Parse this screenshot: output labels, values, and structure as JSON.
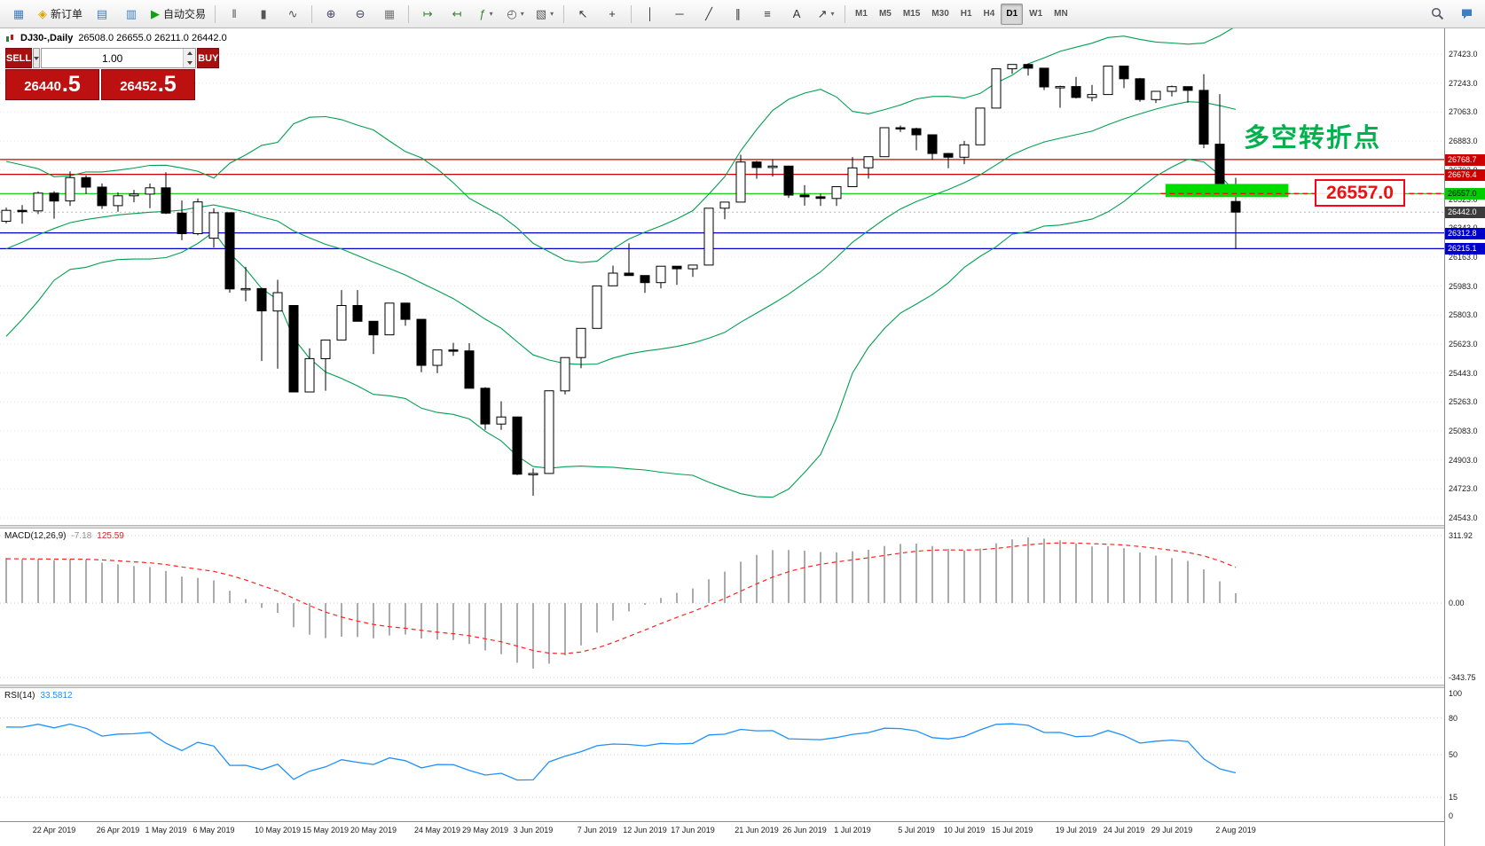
{
  "toolbar": {
    "items": [
      {
        "name": "new-chart-button",
        "glyph": "▦",
        "color": "#3b7fc4"
      },
      {
        "name": "new-order-button",
        "glyph": "◈",
        "color": "#dfa400",
        "label": "新订单"
      },
      {
        "name": "chart-profiles-button",
        "glyph": "▤",
        "color": "#3b7fc4"
      },
      {
        "name": "market-watch-button",
        "glyph": "▥",
        "color": "#3b7fc4"
      },
      {
        "name": "auto-trading-button",
        "glyph": "▶",
        "color": "#12a112",
        "label": "自动交易"
      },
      {
        "type": "sep"
      },
      {
        "name": "bar-chart-button",
        "glyph": "‖",
        "color": "#555"
      },
      {
        "name": "candlestick-chart-button",
        "glyph": "▮",
        "color": "#555"
      },
      {
        "name": "line-chart-button",
        "glyph": "∿",
        "color": "#555"
      },
      {
        "type": "sep"
      },
      {
        "name": "zoom-in-button",
        "glyph": "⊕",
        "color": "#446"
      },
      {
        "name": "zoom-out-button",
        "glyph": "⊖",
        "color": "#446"
      },
      {
        "name": "tile-windows-button",
        "glyph": "▦",
        "color": "#777"
      },
      {
        "type": "sep"
      },
      {
        "name": "auto-scroll-button",
        "glyph": "↦",
        "color": "#2c8b2c"
      },
      {
        "name": "chart-shift-button",
        "glyph": "↤",
        "color": "#2c8b2c"
      },
      {
        "name": "indicators-button",
        "glyph": "ƒ",
        "color": "#2c8b2c",
        "dropdown": true
      },
      {
        "name": "periods-button",
        "glyph": "◴",
        "color": "#555",
        "dropdown": true
      },
      {
        "name": "templates-button",
        "glyph": "▧",
        "color": "#555",
        "dropdown": true
      },
      {
        "type": "sep"
      },
      {
        "name": "cursor-button",
        "glyph": "↖",
        "color": "#333"
      },
      {
        "name": "crosshair-button",
        "glyph": "+",
        "color": "#333"
      },
      {
        "type": "sep"
      },
      {
        "name": "vertical-line-button",
        "glyph": "│",
        "color": "#333"
      },
      {
        "name": "horizontal-line-button",
        "glyph": "─",
        "color": "#333"
      },
      {
        "name": "trendline-button",
        "glyph": "╱",
        "color": "#333"
      },
      {
        "name": "channel-button",
        "glyph": "∥",
        "color": "#333"
      },
      {
        "name": "fibonacci-button",
        "glyph": "≡",
        "color": "#333"
      },
      {
        "name": "text-button",
        "glyph": "A",
        "color": "#333"
      },
      {
        "name": "arrow-objects-button",
        "glyph": "↗",
        "color": "#333",
        "dropdown": true
      },
      {
        "type": "sep"
      },
      {
        "type": "timeframes"
      },
      {
        "type": "spacer"
      },
      {
        "name": "search-button",
        "svg": "search"
      },
      {
        "name": "community-button",
        "svg": "chat"
      }
    ],
    "timeframes": {
      "items": [
        "M1",
        "M5",
        "M15",
        "M30",
        "H1",
        "H4",
        "D1",
        "W1",
        "MN"
      ],
      "active": "D1"
    }
  },
  "chart": {
    "symbol_period": "DJ30-,Daily",
    "ohlc_text": "26508.0 26655.0 26211.0 26442.0",
    "trade_panel": {
      "sell_label": "SELL",
      "buy_label": "BUY",
      "volume": "1.00",
      "sell_price": "26440",
      "sell_frac": ".5",
      "buy_price": "26452",
      "buy_frac": ".5"
    },
    "annotation_text": "多空转折点",
    "callout_text": "26557.0",
    "current_price": 26442.0,
    "current_price_badge_color": "#3c3c3c",
    "levels": [
      {
        "price": 26768.7,
        "color": "#cc0000",
        "text_color": "#ffffff"
      },
      {
        "price": 26676.4,
        "color": "#cc0000",
        "text_color": "#ffffff"
      },
      {
        "price": 26557.0,
        "color": "#00cc00",
        "text_color": "#000000"
      },
      {
        "price": 26312.8,
        "color": "#0000cc",
        "text_color": "#ffffff"
      },
      {
        "price": 26215.1,
        "color": "#0000cc",
        "text_color": "#ffffff"
      }
    ],
    "highlight_rect": {
      "i1": 72.6,
      "i2": 80.3,
      "price_top": 26617,
      "price_bottom": 26535,
      "color": "#00dc00"
    },
    "callout_line": {
      "i1": 72.3,
      "price": 26557.0,
      "color": "#ff0016"
    }
  },
  "chart_data": {
    "type": "candlestick",
    "title": "DJ30-,Daily",
    "price_axis": {
      "p_max": 27583,
      "p_min": 24499,
      "gridlines": [
        27423,
        27243,
        27063,
        26883,
        26703,
        26523,
        26343,
        26163,
        25983,
        25803,
        25623,
        25443,
        25263,
        25083,
        24903,
        24723,
        24543
      ]
    },
    "open": [
      26385,
      26453,
      26450,
      26560,
      26511,
      26656,
      26597,
      26482,
      26543,
      26554,
      26593,
      26436,
      26308,
      26280,
      26438,
      25965,
      25967,
      25828,
      25862,
      25325,
      25532,
      25648,
      25862,
      25764,
      25680,
      25877,
      25776,
      25490,
      25586,
      25580,
      25348,
      25126,
      25170,
      24815,
      24819,
      25332,
      25539,
      25720,
      25984,
      26063,
      26048,
      26004,
      26106,
      26090,
      26113,
      26466,
      26504,
      26753,
      26719,
      26728,
      26548,
      26537,
      26527,
      26600,
      26717,
      26786,
      26966,
      26960,
      26922,
      26806,
      26783,
      26860,
      27088,
      27332,
      27359,
      27336,
      27220,
      27222,
      27154,
      27172,
      27349,
      27270,
      27141,
      27192,
      27221,
      27198,
      26864,
      26508
    ],
    "high": [
      26470,
      26486,
      26570,
      26572,
      26695,
      26670,
      26620,
      26564,
      26580,
      26619,
      26689,
      26514,
      26527,
      26465,
      26439,
      26102,
      25972,
      26022,
      25862,
      25596,
      25648,
      25958,
      25958,
      25764,
      25877,
      25877,
      25776,
      25586,
      25630,
      25628,
      25355,
      25267,
      25170,
      24850,
      25332,
      25539,
      25720,
      25984,
      26110,
      26248,
      26048,
      26106,
      26106,
      26113,
      26466,
      26504,
      26798,
      26760,
      26768,
      26730,
      26610,
      26557,
      26600,
      26784,
      26786,
      26966,
      26980,
      26966,
      26922,
      26810,
      26884,
      27088,
      27332,
      27359,
      27365,
      27336,
      27227,
      27282,
      27232,
      27349,
      27349,
      27275,
      27192,
      27228,
      27221,
      27299,
      27175,
      26655
    ],
    "low": [
      26372,
      26370,
      26430,
      26401,
      26480,
      26555,
      26462,
      26444,
      26503,
      26466,
      26430,
      26268,
      26298,
      26222,
      25942,
      25888,
      25517,
      25470,
      25324,
      25325,
      25333,
      25648,
      25764,
      25560,
      25680,
      25736,
      25448,
      25442,
      25550,
      25348,
      25090,
      25090,
      24809,
      24680,
      24819,
      25310,
      25472,
      25720,
      25984,
      26048,
      25940,
      25968,
      25990,
      26040,
      26113,
      26398,
      26504,
      26649,
      26663,
      26530,
      26482,
      26480,
      26480,
      26600,
      26650,
      26786,
      26940,
      26826,
      26766,
      26714,
      26740,
      26860,
      27088,
      27300,
      27290,
      27200,
      27090,
      27148,
      27130,
      27172,
      27212,
      27127,
      27120,
      27160,
      27121,
      26839,
      26583,
      26211
    ],
    "close": [
      26453,
      26450,
      26560,
      26511,
      26656,
      26597,
      26482,
      26543,
      26554,
      26593,
      26436,
      26308,
      26505,
      26438,
      25965,
      25967,
      25828,
      25942,
      25325,
      25532,
      25648,
      25862,
      25764,
      25680,
      25877,
      25776,
      25490,
      25586,
      25580,
      25348,
      25126,
      25170,
      24815,
      24819,
      25332,
      25539,
      25720,
      25984,
      26063,
      26048,
      26004,
      26106,
      26090,
      26113,
      26466,
      26504,
      26753,
      26719,
      26728,
      26548,
      26537,
      26527,
      26600,
      26717,
      26786,
      26966,
      26960,
      26922,
      26806,
      26783,
      26860,
      27088,
      27332,
      27359,
      27336,
      27220,
      27222,
      27154,
      27172,
      27349,
      27270,
      27141,
      27192,
      27221,
      27198,
      26864,
      26583,
      26442
    ],
    "x_axis_labels": [
      {
        "i": 3,
        "t": "22 Apr 2019"
      },
      {
        "i": 7,
        "t": "26 Apr 2019"
      },
      {
        "i": 10,
        "t": "1 May 2019"
      },
      {
        "i": 13,
        "t": "6 May 2019"
      },
      {
        "i": 17,
        "t": "10 May 2019"
      },
      {
        "i": 20,
        "t": "15 May 2019"
      },
      {
        "i": 23,
        "t": "20 May 2019"
      },
      {
        "i": 27,
        "t": "24 May 2019"
      },
      {
        "i": 30,
        "t": "29 May 2019"
      },
      {
        "i": 33,
        "t": "3 Jun 2019"
      },
      {
        "i": 37,
        "t": "7 Jun 2019"
      },
      {
        "i": 40,
        "t": "12 Jun 2019"
      },
      {
        "i": 43,
        "t": "17 Jun 2019"
      },
      {
        "i": 47,
        "t": "21 Jun 2019"
      },
      {
        "i": 50,
        "t": "26 Jun 2019"
      },
      {
        "i": 53,
        "t": "1 Jul 2019"
      },
      {
        "i": 57,
        "t": "5 Jul 2019"
      },
      {
        "i": 60,
        "t": "10 Jul 2019"
      },
      {
        "i": 63,
        "t": "15 Jul 2019"
      },
      {
        "i": 67,
        "t": "19 Jul 2019"
      },
      {
        "i": 70,
        "t": "24 Jul 2019"
      },
      {
        "i": 73,
        "t": "29 Jul 2019"
      },
      {
        "i": 77,
        "t": "2 Aug 2019"
      }
    ],
    "indicators": {
      "bollinger": {
        "period": 20,
        "deviation": 2,
        "color": "#00a050"
      },
      "macd": {
        "label": "MACD(12,26,9)",
        "value": "-7.18",
        "signal_value": "125.59",
        "scale_max": 311.92,
        "scale_min": -343.75,
        "scale_labels": [
          "311.92",
          "0.00",
          "-343.75"
        ],
        "histogram_color": "#ababab",
        "signal_color": "#ff2020"
      },
      "rsi": {
        "label": "RSI(14)",
        "value": "33.5812",
        "period": 14,
        "levels": [
          100,
          80,
          50,
          15,
          0
        ],
        "line_color": "#1e90ff"
      },
      "warmup_close": [
        25502,
        25625,
        25658,
        25717,
        25929,
        26218,
        26180,
        26258,
        26385,
        26425,
        26341,
        26151,
        26157,
        26143,
        26384,
        26412,
        26449,
        26452,
        26559,
        26385
      ]
    }
  }
}
